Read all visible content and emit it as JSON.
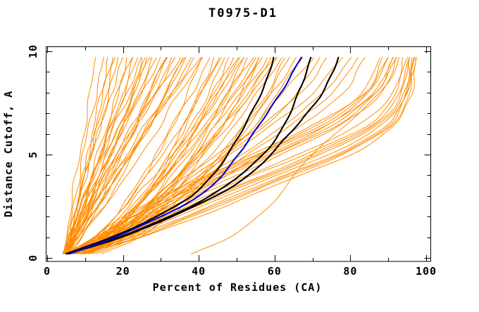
{
  "title": "T0975-D1",
  "axes": {
    "x": {
      "label": "Percent of Residues (CA)",
      "min": 0,
      "max": 100,
      "major_ticks": [
        0,
        20,
        40,
        60,
        80,
        100
      ],
      "minor_ticks": [
        10,
        30,
        50,
        70,
        90
      ]
    },
    "y": {
      "label": "Distance Cutoff, A",
      "min": 0,
      "max": 10,
      "major_ticks": [
        0,
        5,
        10
      ],
      "minor_ticks": [
        1,
        2,
        3,
        4,
        6,
        7,
        8,
        9
      ]
    }
  },
  "colors": {
    "model_lines": "#ff8c00",
    "best_model_lines": "#000000",
    "selected_model_line": "#0000dd",
    "frame": "#000000",
    "text": "#000000",
    "background": "#ffffff"
  },
  "chart_data": {
    "type": "line",
    "title": "T0975-D1",
    "xlabel": "Percent of Residues (CA)",
    "ylabel": "Distance Cutoff, A",
    "xlim": [
      0,
      100
    ],
    "ylim": [
      0,
      10
    ],
    "grid": false,
    "legend": "none",
    "description": "Each curve: cumulative percent of CA residues under a superposition distance cutoff for one predicted model. Orange = all models, black = reference/best models, blue = highlighted model.",
    "cutoffs_orange": [
      0.2,
      1,
      2,
      3.5,
      5,
      6.5,
      8,
      9.7
    ],
    "cutoffs_highlight": [
      0.2,
      1,
      2,
      3,
      4,
      5,
      6,
      7,
      8,
      9,
      9.7
    ],
    "orange_series": [
      [
        4.2,
        4.9,
        5.9,
        7.2,
        8.6,
        10.0,
        11.4,
        13
      ],
      [
        5.1,
        5.7,
        6.5,
        7.9,
        9.5,
        11.2,
        12.9,
        15
      ],
      [
        4.4,
        5.8,
        7.2,
        9.0,
        10.8,
        12.5,
        14.3,
        16
      ],
      [
        5.2,
        6.0,
        7.2,
        8.9,
        10.9,
        12.9,
        14.9,
        17
      ],
      [
        4.8,
        5.9,
        7.3,
        9.3,
        11.4,
        13.5,
        15.7,
        18
      ],
      [
        4.3,
        5.5,
        7.1,
        9.4,
        11.7,
        14.1,
        16.4,
        19
      ],
      [
        5.1,
        6.0,
        7.3,
        9.4,
        11.8,
        14.3,
        16.9,
        20
      ],
      [
        4.8,
        6.8,
        8.8,
        11.5,
        14.0,
        16.3,
        18.6,
        21
      ],
      [
        5.3,
        6.4,
        8.0,
        10.5,
        13.3,
        16.1,
        18.9,
        22
      ],
      [
        4.9,
        6.4,
        8.4,
        11.2,
        14.1,
        17.1,
        20.0,
        23
      ],
      [
        4.4,
        6.1,
        8.1,
        11.2,
        14.3,
        17.4,
        20.5,
        24
      ],
      [
        5.2,
        6.3,
        8.0,
        10.9,
        14.0,
        17.4,
        20.9,
        25
      ],
      [
        5.0,
        7.6,
        10.2,
        13.7,
        16.9,
        20.0,
        22.9,
        26
      ],
      [
        5.4,
        6.8,
        8.9,
        12.1,
        15.7,
        19.4,
        23.1,
        27
      ],
      [
        5.0,
        7.0,
        9.5,
        13.0,
        16.7,
        20.4,
        24.1,
        28
      ],
      [
        4.5,
        6.6,
        9.2,
        13.0,
        16.9,
        20.8,
        24.6,
        29
      ],
      [
        5.2,
        6.6,
        8.8,
        12.4,
        16.3,
        20.5,
        24.8,
        30
      ],
      [
        5.2,
        8.4,
        11.6,
        15.9,
        19.9,
        23.6,
        27.1,
        31
      ],
      [
        5.5,
        7.3,
        9.9,
        13.9,
        18.3,
        22.8,
        27.3,
        32
      ],
      [
        5.2,
        7.6,
        10.6,
        14.9,
        19.4,
        23.8,
        28.3,
        33
      ],
      [
        4.6,
        7.1,
        10.2,
        14.8,
        19.5,
        24.1,
        28.7,
        34
      ],
      [
        5.3,
        7.0,
        9.5,
        13.8,
        18.5,
        23.6,
        28.8,
        35
      ],
      [
        5.4,
        9.2,
        13.1,
        18.2,
        22.8,
        27.2,
        31.4,
        36
      ],
      [
        5.6,
        7.8,
        10.9,
        15.7,
        20.9,
        26.2,
        31.5,
        37
      ],
      [
        5.4,
        8.2,
        11.7,
        16.8,
        22.2,
        27.4,
        32.7,
        38
      ],
      [
        4.7,
        7.6,
        11.2,
        16.6,
        22.0,
        27.5,
        32.9,
        39
      ],
      [
        5.3,
        7.4,
        10.4,
        15.6,
        21.3,
        27.3,
        33.6,
        40
      ],
      [
        6.2,
        7.5,
        9.3,
        12.4,
        15.8,
        19.2,
        22.7,
        26
      ],
      [
        5.0,
        8.0,
        12.0,
        17.0,
        22.0,
        27.0,
        31.0,
        36
      ],
      [
        6.0,
        9.0,
        13.0,
        19.0,
        25.0,
        30.0,
        35.0,
        41
      ],
      [
        4.0,
        6.0,
        8.0,
        11.0,
        15.0,
        18.0,
        22.0,
        25
      ],
      [
        5.0,
        7.0,
        10.0,
        14.0,
        18.0,
        23.0,
        27.0,
        31
      ],
      [
        7.6,
        13.5,
        18.4,
        24.1,
        28.9,
        33.1,
        37.0,
        41
      ],
      [
        7.5,
        12.7,
        17.6,
        23.6,
        28.9,
        33.7,
        38.2,
        43
      ],
      [
        9.7,
        16.8,
        22.2,
        28.0,
        32.7,
        36.7,
        40.3,
        44
      ],
      [
        8.9,
        15.3,
        20.5,
        26.7,
        31.9,
        36.5,
        40.6,
        45
      ],
      [
        6.8,
        12.6,
        17.9,
        24.6,
        30.4,
        35.7,
        40.7,
        46
      ],
      [
        10.0,
        16.5,
        21.9,
        28.2,
        33.5,
        38.3,
        42.5,
        47
      ],
      [
        10.3,
        18.1,
        24.0,
        30.4,
        35.6,
        40.0,
        44.0,
        48
      ],
      [
        8.6,
        15.1,
        20.8,
        27.7,
        33.6,
        38.9,
        43.8,
        49
      ],
      [
        8.5,
        15.8,
        21.8,
        29.0,
        34.9,
        40.2,
        45.0,
        50
      ],
      [
        9.0,
        15.2,
        20.9,
        28.0,
        34.3,
        40.0,
        45.3,
        51
      ],
      [
        10.9,
        19.4,
        25.8,
        32.8,
        38.5,
        43.3,
        47.6,
        52
      ],
      [
        9.7,
        17.3,
        23.6,
        31.0,
        37.2,
        42.8,
        47.8,
        53
      ],
      [
        7.3,
        14.2,
        20.5,
        28.5,
        35.4,
        41.8,
        47.7,
        54
      ],
      [
        10.8,
        18.6,
        25.0,
        32.6,
        38.9,
        44.5,
        49.6,
        55
      ],
      [
        11.5,
        20.7,
        27.6,
        35.2,
        41.3,
        46.6,
        51.2,
        56
      ],
      [
        9.2,
        16.9,
        23.6,
        31.8,
        38.7,
        45.0,
        50.9,
        57
      ],
      [
        9.3,
        17.9,
        24.9,
        33.3,
        40.3,
        46.5,
        52.1,
        58
      ],
      [
        8.6,
        16.2,
        23.2,
        31.9,
        39.6,
        46.6,
        53.0,
        60
      ],
      [
        9.6,
        18.9,
        26.5,
        35.5,
        43.0,
        49.6,
        55.7,
        62
      ],
      [
        14.3,
        24.6,
        32.3,
        40.8,
        47.6,
        53.5,
        58.7,
        64
      ],
      [
        10.0,
        19.9,
        28.0,
        37.6,
        45.7,
        52.8,
        59.2,
        66
      ],
      [
        10.3,
        19.9,
        28.3,
        38.5,
        47.2,
        55.1,
        62.3,
        70
      ],
      [
        8.0,
        14.0,
        19.0,
        26.0,
        33.0,
        40.0,
        46.0,
        52
      ],
      [
        11.0,
        19.0,
        26.0,
        34.0,
        41.0,
        48.0,
        54.0,
        59
      ],
      [
        12.0,
        22.0,
        30.0,
        38.0,
        46.0,
        52.0,
        58.0,
        63
      ],
      [
        9.0,
        15.0,
        21.0,
        29.0,
        36.0,
        43.0,
        50.0,
        56
      ],
      [
        13.0,
        23.0,
        31.0,
        40.0,
        48.0,
        55.0,
        61.0,
        67
      ],
      [
        10.0,
        17.0,
        24.0,
        32.0,
        40.0,
        47.0,
        54.0,
        61
      ],
      [
        6.0,
        18.0,
        30.0,
        48.0,
        68.0,
        85.0,
        92.0,
        95.0
      ],
      [
        7.0,
        20.0,
        33.0,
        52.0,
        72.0,
        88.0,
        94.0,
        96.0
      ],
      [
        8.0,
        22.0,
        36.0,
        56.0,
        76.0,
        90.0,
        95.0,
        97.0
      ],
      [
        6.0,
        19.0,
        31.0,
        50.0,
        70.0,
        86.0,
        93.0,
        95.5
      ],
      [
        7.0,
        21.0,
        34.0,
        54.0,
        74.0,
        89.0,
        94.5,
        96.5
      ],
      [
        9.0,
        24.0,
        38.0,
        58.0,
        78.0,
        91.0,
        95.5,
        97.0
      ],
      [
        6.0,
        17.0,
        28.0,
        46.0,
        66.0,
        83.0,
        91.0,
        94.0
      ],
      [
        8.0,
        23.0,
        37.0,
        57.0,
        77.0,
        90.5,
        95.0,
        96.5
      ],
      [
        7.0,
        20.0,
        32.0,
        51.0,
        71.0,
        87.0,
        93.5,
        95.8
      ],
      [
        9.0,
        25.0,
        40.0,
        60.0,
        80.0,
        92.0,
        96.0,
        97.5
      ],
      [
        5.0,
        13.0,
        22.0,
        38.0,
        56.0,
        73.0,
        84.0,
        89.0
      ],
      [
        6.0,
        14.0,
        24.0,
        40.0,
        58.0,
        75.0,
        86.0,
        91.0
      ],
      [
        7.0,
        15.0,
        26.0,
        42.0,
        60.0,
        77.0,
        87.0,
        92.0
      ],
      [
        5.0,
        12.0,
        20.0,
        36.0,
        54.0,
        71.0,
        83.0,
        88.0
      ],
      [
        6.0,
        15.0,
        25.0,
        41.0,
        59.0,
        76.0,
        86.5,
        91.5
      ],
      [
        7.0,
        16.0,
        27.0,
        44.0,
        62.0,
        78.0,
        88.0,
        92.5
      ],
      [
        5.0,
        13.0,
        21.0,
        37.0,
        55.0,
        72.0,
        84.0,
        89.5
      ],
      [
        6.0,
        14.0,
        23.0,
        39.0,
        57.0,
        74.0,
        85.0,
        90.0
      ],
      [
        6.0,
        15.0,
        24.0,
        36.0,
        48.0,
        60.0,
        70.0,
        78.0
      ],
      [
        5.0,
        14.0,
        23.0,
        35.0,
        47.0,
        58.0,
        67.0,
        74.0
      ],
      [
        7.0,
        17.0,
        27.0,
        40.0,
        53.0,
        65.0,
        75.0,
        82.0
      ],
      [
        6.0,
        16.0,
        26.0,
        38.0,
        51.0,
        63.0,
        73.0,
        80.0
      ],
      [
        5.0,
        13.0,
        22.0,
        33.0,
        45.0,
        57.0,
        66.0,
        72.0
      ],
      [
        7.0,
        18.0,
        29.0,
        43.0,
        56.0,
        68.0,
        78.0,
        84.0
      ],
      [
        38.0,
        48.0,
        56.0,
        63.0,
        70.0,
        79.0,
        88.0,
        93.0
      ]
    ],
    "black_series": [
      [
        5.0,
        17.0,
        29.0,
        38.0,
        43.5,
        47.5,
        51.0,
        54.0,
        56.5,
        58.5,
        59.5
      ],
      [
        5.5,
        19.0,
        32.0,
        43.0,
        51.0,
        57.0,
        61.0,
        64.0,
        66.5,
        68.5,
        69.5
      ],
      [
        5.5,
        19.5,
        33.0,
        44.5,
        53.0,
        59.0,
        64.0,
        68.5,
        72.5,
        75.5,
        77.0
      ]
    ],
    "blue_series": [
      [
        6.0,
        18.0,
        30.0,
        40.0,
        46.0,
        50.5,
        54.5,
        58.0,
        61.5,
        64.8,
        67.0
      ]
    ]
  }
}
